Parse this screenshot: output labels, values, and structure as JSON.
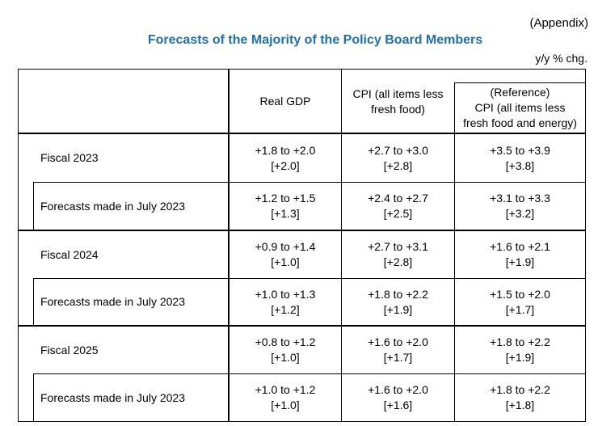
{
  "appendix_label": "(Appendix)",
  "title": "Forecasts of the Majority of the Policy Board Members",
  "unit_label": "y/y % chg.",
  "headers": {
    "gdp": "Real GDP",
    "cpi_line1": "CPI (all items less",
    "cpi_line2": "fresh food)",
    "ref_line1": "(Reference)",
    "ref_line2": "CPI (all items less",
    "ref_line3": "fresh food and energy)"
  },
  "rows": [
    {
      "label": "Fiscal 2023",
      "gdp_range": "+1.8 to +2.0",
      "gdp_median": "[+2.0]",
      "cpi_range": "+2.7 to +3.0",
      "cpi_median": "[+2.8]",
      "ref_range": "+3.5 to +3.9",
      "ref_median": "[+3.8]"
    },
    {
      "label": "Forecasts made in July 2023",
      "gdp_range": "+1.2 to +1.5",
      "gdp_median": "[+1.3]",
      "cpi_range": "+2.4 to +2.7",
      "cpi_median": "[+2.5]",
      "ref_range": "+3.1 to +3.3",
      "ref_median": "[+3.2]"
    },
    {
      "label": "Fiscal 2024",
      "gdp_range": "+0.9 to +1.4",
      "gdp_median": "[+1.0]",
      "cpi_range": "+2.7 to +3.1",
      "cpi_median": "[+2.8]",
      "ref_range": "+1.6 to +2.1",
      "ref_median": "[+1.9]"
    },
    {
      "label": "Forecasts made in July 2023",
      "gdp_range": "+1.0 to +1.3",
      "gdp_median": "[+1.2]",
      "cpi_range": "+1.8 to +2.2",
      "cpi_median": "[+1.9]",
      "ref_range": "+1.5 to +2.0",
      "ref_median": "[+1.7]"
    },
    {
      "label": "Fiscal 2025",
      "gdp_range": "+0.8 to +1.2",
      "gdp_median": "[+1.0]",
      "cpi_range": "+1.6 to +2.0",
      "cpi_median": "[+1.7]",
      "ref_range": "+1.8 to +2.2",
      "ref_median": "[+1.9]"
    },
    {
      "label": "Forecasts made in July 2023",
      "gdp_range": "+1.0 to +1.2",
      "gdp_median": "[+1.0]",
      "cpi_range": "+1.6 to +2.0",
      "cpi_median": "[+1.6]",
      "ref_range": "+1.8 to +2.2",
      "ref_median": "[+1.8]"
    }
  ]
}
